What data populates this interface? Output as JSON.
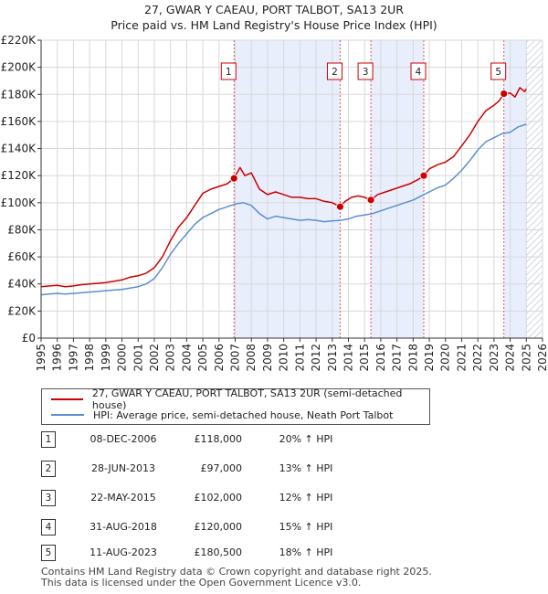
{
  "chart_data": {
    "type": "line",
    "title": "27, GWAR Y CAEAU, PORT TALBOT, SA13 2UR",
    "subtitle": "Price paid vs. HM Land Registry's House Price Index (HPI)",
    "xlabel": "",
    "ylabel": "",
    "xlim": [
      1995,
      2026
    ],
    "ylim": [
      0,
      220000
    ],
    "x_ticks": [
      "1995",
      "1996",
      "1997",
      "1998",
      "1999",
      "2000",
      "2001",
      "2002",
      "2003",
      "2004",
      "2005",
      "2006",
      "2007",
      "2008",
      "2009",
      "2010",
      "2011",
      "2012",
      "2013",
      "2014",
      "2015",
      "2016",
      "2017",
      "2018",
      "2019",
      "2020",
      "2021",
      "2022",
      "2023",
      "2024",
      "2025",
      "2026"
    ],
    "y_ticks": [
      {
        "value": 0,
        "label": "£0"
      },
      {
        "value": 20000,
        "label": "£20K"
      },
      {
        "value": 40000,
        "label": "£40K"
      },
      {
        "value": 60000,
        "label": "£60K"
      },
      {
        "value": 80000,
        "label": "£80K"
      },
      {
        "value": 100000,
        "label": "£100K"
      },
      {
        "value": 120000,
        "label": "£120K"
      },
      {
        "value": 140000,
        "label": "£140K"
      },
      {
        "value": 160000,
        "label": "£160K"
      },
      {
        "value": 180000,
        "label": "£180K"
      },
      {
        "value": 200000,
        "label": "£200K"
      },
      {
        "value": 220000,
        "label": "£220K"
      }
    ],
    "grid": true,
    "colors": {
      "property": "#cc0000",
      "hpi": "#5b8fcf",
      "shade": "#e8eefc",
      "future_hatch": "#b0bcd0",
      "marker_line": "#e05555"
    },
    "series": [
      {
        "name": "27, GWAR Y CAEAU, PORT TALBOT, SA13 2UR (semi-detached house)",
        "color": "#cc0000",
        "x": [
          1995.0,
          1995.5,
          1996.0,
          1996.5,
          1997.0,
          1997.5,
          1998.0,
          1998.5,
          1999.0,
          1999.5,
          2000.0,
          2000.5,
          2001.0,
          2001.5,
          2002.0,
          2002.5,
          2003.0,
          2003.5,
          2004.0,
          2004.5,
          2005.0,
          2005.5,
          2006.0,
          2006.5,
          2006.93,
          2007.3,
          2007.6,
          2008.0,
          2008.5,
          2009.0,
          2009.5,
          2010.0,
          2010.5,
          2011.0,
          2011.5,
          2012.0,
          2012.5,
          2013.0,
          2013.49,
          2013.8,
          2014.2,
          2014.6,
          2015.0,
          2015.39,
          2015.8,
          2016.3,
          2016.8,
          2017.3,
          2017.8,
          2018.3,
          2018.66,
          2019.0,
          2019.5,
          2020.0,
          2020.5,
          2021.0,
          2021.5,
          2022.0,
          2022.5,
          2023.0,
          2023.3,
          2023.61,
          2024.0,
          2024.3,
          2024.6,
          2024.9,
          2025.0
        ],
        "values": [
          38000,
          38500,
          39000,
          38000,
          38500,
          39500,
          40000,
          40500,
          41000,
          42000,
          43000,
          45000,
          46000,
          48000,
          52000,
          60000,
          72000,
          82000,
          89000,
          98000,
          107000,
          110000,
          112000,
          114000,
          118000,
          126000,
          120000,
          122000,
          110000,
          106000,
          108000,
          106000,
          104000,
          104000,
          103000,
          103000,
          101000,
          100000,
          97000,
          101000,
          104000,
          105000,
          104000,
          102000,
          106000,
          108000,
          110000,
          112000,
          114000,
          117000,
          120000,
          125000,
          128000,
          130000,
          134000,
          142000,
          150000,
          160000,
          168000,
          172000,
          175000,
          180500,
          181000,
          178000,
          185000,
          182000,
          184000
        ]
      },
      {
        "name": "HPI: Average price, semi-detached house, Neath Port Talbot",
        "color": "#5b8fcf",
        "x": [
          1995.0,
          1995.5,
          1996.0,
          1996.5,
          1997.0,
          1997.5,
          1998.0,
          1998.5,
          1999.0,
          1999.5,
          2000.0,
          2000.5,
          2001.0,
          2001.5,
          2002.0,
          2002.5,
          2003.0,
          2003.5,
          2004.0,
          2004.5,
          2005.0,
          2005.5,
          2006.0,
          2006.5,
          2007.0,
          2007.5,
          2008.0,
          2008.5,
          2009.0,
          2009.5,
          2010.0,
          2010.5,
          2011.0,
          2011.5,
          2012.0,
          2012.5,
          2013.0,
          2013.5,
          2014.0,
          2014.5,
          2015.0,
          2015.5,
          2016.0,
          2016.5,
          2017.0,
          2017.5,
          2018.0,
          2018.5,
          2019.0,
          2019.5,
          2020.0,
          2020.5,
          2021.0,
          2021.5,
          2022.0,
          2022.5,
          2023.0,
          2023.5,
          2024.0,
          2024.5,
          2025.0
        ],
        "values": [
          32000,
          32500,
          33000,
          32500,
          33000,
          33500,
          34000,
          34500,
          35000,
          35500,
          36000,
          37000,
          38000,
          40000,
          44000,
          52000,
          62000,
          70000,
          77000,
          84000,
          89000,
          92000,
          95000,
          97000,
          99000,
          100000,
          98000,
          92000,
          88000,
          90000,
          89000,
          88000,
          87000,
          87500,
          87000,
          86000,
          86500,
          87000,
          88000,
          90000,
          91000,
          92000,
          94000,
          96000,
          98000,
          100000,
          102000,
          105000,
          108000,
          111000,
          113000,
          118000,
          124000,
          131000,
          139000,
          145000,
          148000,
          151000,
          152000,
          156000,
          158000
        ]
      }
    ],
    "transactions": [
      {
        "num": "1",
        "date": "08-DEC-2006",
        "price": "£118,000",
        "hpi": "20% ↑ HPI",
        "x": 2006.93,
        "value": 118000
      },
      {
        "num": "2",
        "date": "28-JUN-2013",
        "price": "£97,000",
        "hpi": "13% ↑ HPI",
        "x": 2013.49,
        "value": 97000
      },
      {
        "num": "3",
        "date": "22-MAY-2015",
        "price": "£102,000",
        "hpi": "12% ↑ HPI",
        "x": 2015.39,
        "value": 102000
      },
      {
        "num": "4",
        "date": "31-AUG-2018",
        "price": "£120,000",
        "hpi": "15% ↑ HPI",
        "x": 2018.66,
        "value": 120000
      },
      {
        "num": "5",
        "date": "11-AUG-2023",
        "price": "£180,500",
        "hpi": "18% ↑ HPI",
        "x": 2023.61,
        "value": 180500
      }
    ],
    "shaded_ranges": [
      [
        2006.93,
        2013.49
      ],
      [
        2015.39,
        2018.66
      ],
      [
        2023.61,
        2025.0
      ]
    ],
    "future_from": 2025.0
  },
  "footer": {
    "line1": "Contains HM Land Registry data © Crown copyright and database right 2025.",
    "line2": "This data is licensed under the Open Government Licence v3.0."
  }
}
